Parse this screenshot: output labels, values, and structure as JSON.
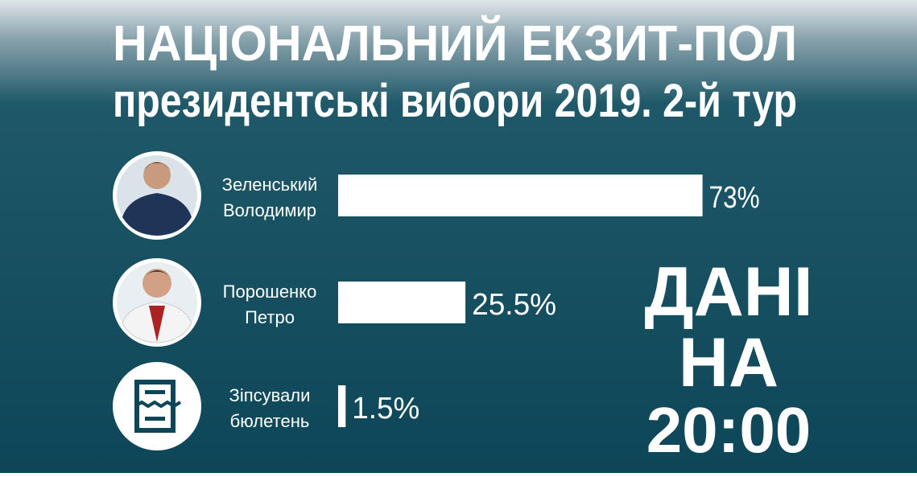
{
  "chart_data": {
    "type": "bar",
    "orientation": "horizontal",
    "title": "НАЦІОНАЛЬНИЙ ЕКЗИТ-ПОЛ",
    "subtitle": "президентські вибори 2019. 2-й тур",
    "categories": [
      [
        "Зеленський",
        "Володимир"
      ],
      [
        "Порошенко",
        "Петро"
      ],
      [
        "Зіпсували",
        "бюлетень"
      ]
    ],
    "values": [
      73,
      25.5,
      1.5
    ],
    "value_labels": [
      "73%",
      "25.5%",
      "1.5%"
    ],
    "color": "#ffffff",
    "annotation": [
      "ДАНІ",
      "НА",
      "20:00"
    ]
  }
}
